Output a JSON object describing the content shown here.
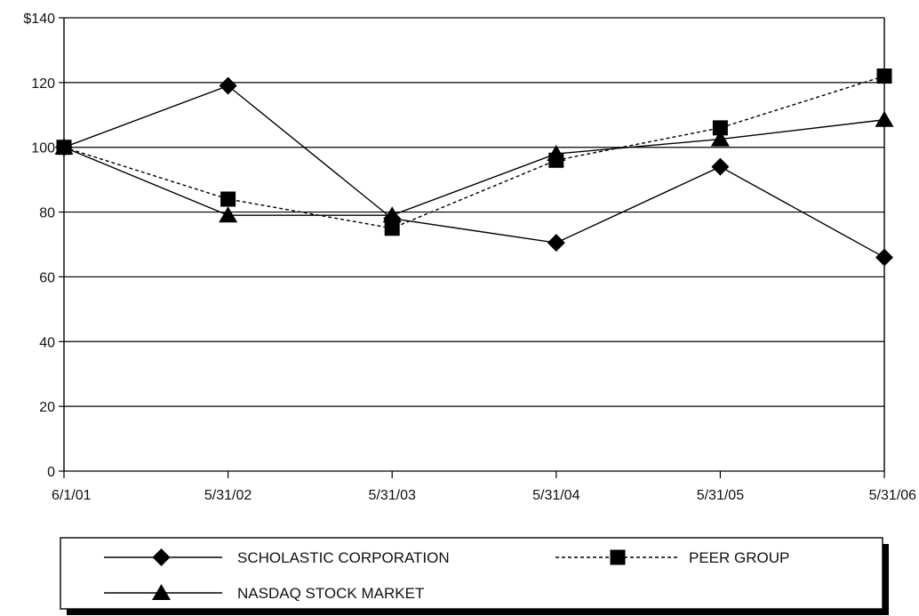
{
  "chart_data": {
    "type": "line",
    "title": "",
    "xlabel": "",
    "ylabel": "",
    "categories": [
      "6/1/01",
      "5/31/02",
      "5/31/03",
      "5/31/04",
      "5/31/05",
      "5/31/06"
    ],
    "ylim": [
      0,
      140
    ],
    "y_ticks": [
      {
        "value": 0,
        "label": "0"
      },
      {
        "value": 20,
        "label": "20"
      },
      {
        "value": 40,
        "label": "40"
      },
      {
        "value": 60,
        "label": "60"
      },
      {
        "value": 80,
        "label": "80"
      },
      {
        "value": 100,
        "label": "100"
      },
      {
        "value": 120,
        "label": "120"
      },
      {
        "value": 140,
        "label": "$140"
      }
    ],
    "grid": "horizontal",
    "legend_position": "bottom",
    "series": [
      {
        "name": "SCHOLASTIC CORPORATION",
        "marker": "diamond",
        "line": "solid",
        "color": "#000000",
        "values": [
          100,
          119,
          78,
          70.5,
          94,
          66
        ]
      },
      {
        "name": "PEER GROUP",
        "marker": "square",
        "line": "dashed",
        "color": "#000000",
        "values": [
          100,
          84,
          75,
          96,
          106,
          122
        ]
      },
      {
        "name": "NASDAQ STOCK MARKET",
        "marker": "triangle",
        "line": "solid",
        "color": "#000000",
        "values": [
          100,
          79,
          79,
          98,
          102.5,
          108.5
        ]
      }
    ]
  }
}
